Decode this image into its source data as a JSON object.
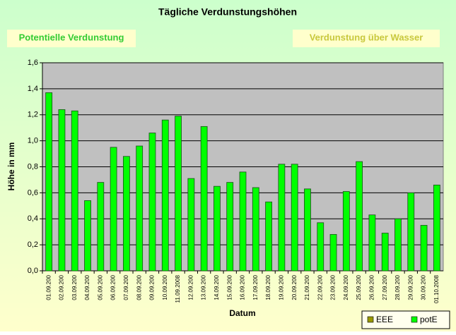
{
  "chart_data": {
    "type": "bar",
    "title": "Tägliche Verdunstungshöhen",
    "annotations": [
      "Potentielle Verdunstung",
      "Verdunstung über Wasser"
    ],
    "ylabel": "Höhe in mm",
    "xlabel": "Datum",
    "categories": [
      "01.09.200",
      "02.09.200",
      "03.09.200",
      "04.09.200",
      "05.09.200",
      "06.09.200",
      "07.09.200",
      "08.09.200",
      "09.09.200",
      "10.09.200",
      "11.09.2008",
      "12.09.200",
      "13.09.200",
      "14.09.200",
      "15.09.200",
      "16.09.200",
      "17.09.200",
      "18.09.200",
      "19.09.200",
      "20.09.200",
      "21.09.200",
      "22.09.200",
      "23.09.200",
      "24.09.200",
      "25.09.200",
      "26.09.200",
      "27.09.200",
      "28.09.200",
      "29.09.200",
      "30.09.200",
      "01.10.2008"
    ],
    "series": [
      {
        "name": "EEE",
        "color": "#999900",
        "values": [
          null,
          null,
          null,
          null,
          null,
          null,
          null,
          null,
          null,
          null,
          null,
          null,
          null,
          null,
          null,
          null,
          null,
          null,
          null,
          null,
          null,
          null,
          null,
          null,
          null,
          null,
          null,
          null,
          null,
          null,
          null
        ]
      },
      {
        "name": "potE",
        "color": "#00ff00",
        "values": [
          1.37,
          1.24,
          1.23,
          0.54,
          0.68,
          0.95,
          0.88,
          0.96,
          1.06,
          1.16,
          1.19,
          0.71,
          1.11,
          0.65,
          0.68,
          0.76,
          0.64,
          0.53,
          0.82,
          0.82,
          0.63,
          0.37,
          0.28,
          0.61,
          0.84,
          0.43,
          0.29,
          0.4,
          0.6,
          0.35,
          0.66
        ]
      }
    ],
    "ylim": [
      0,
      1.6
    ],
    "yticks": [
      {
        "value": 0,
        "label": "0,0"
      },
      {
        "value": 0.2,
        "label": "0,2"
      },
      {
        "value": 0.4,
        "label": "0,4"
      },
      {
        "value": 0.6,
        "label": "0,6"
      },
      {
        "value": 0.8,
        "label": "0,8"
      },
      {
        "value": 1.0,
        "label": "1,0"
      },
      {
        "value": 1.2,
        "label": "1,2"
      },
      {
        "value": 1.4,
        "label": "1,4"
      },
      {
        "value": 1.6,
        "label": "1,6"
      }
    ],
    "grid": true,
    "legend": "bottom-right"
  }
}
